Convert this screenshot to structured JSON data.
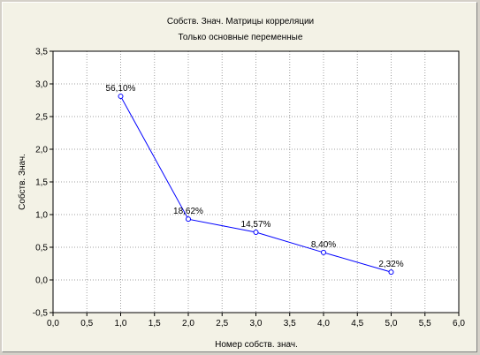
{
  "chart_data": {
    "type": "line",
    "title": "Собств. Знач. Матрицы корреляции",
    "subtitle": "Только основные переменные",
    "xlabel": "Номер собств. знач.",
    "ylabel": "Собств. Знач.",
    "xlim": [
      0,
      6
    ],
    "ylim": [
      -0.5,
      3.5
    ],
    "x_ticks": [
      "0,0",
      "0,5",
      "1,0",
      "1,5",
      "2,0",
      "2,5",
      "3,0",
      "3,5",
      "4,0",
      "4,5",
      "5,0",
      "5,5",
      "6,0"
    ],
    "y_ticks": [
      "-0,5",
      "0,0",
      "0,5",
      "1,0",
      "1,5",
      "2,0",
      "2,5",
      "3,0",
      "3,5"
    ],
    "grid": true,
    "series": [
      {
        "x": [
          1,
          2,
          3,
          4,
          5
        ],
        "y": [
          2.81,
          0.93,
          0.73,
          0.42,
          0.12
        ],
        "labels": [
          "56,10%",
          "18,62%",
          "14,57%",
          "8,40%",
          "2,32%"
        ]
      }
    ],
    "colors": {
      "line": "#0000ff",
      "marker": "#0000ff",
      "grid": "#a0a0a0",
      "plot_bg": "#ffffff",
      "frame": "#000000"
    }
  }
}
